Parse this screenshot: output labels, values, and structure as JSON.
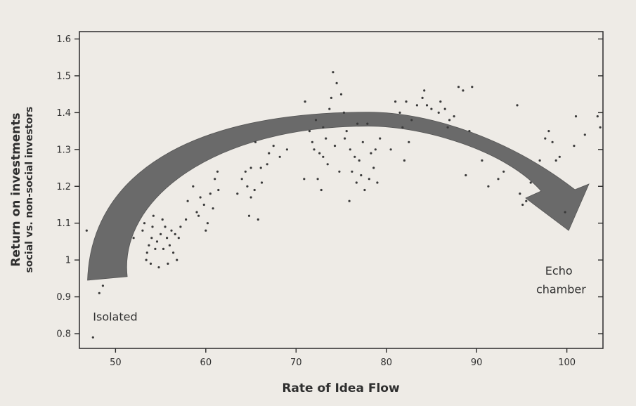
{
  "chart_data": {
    "type": "scatter",
    "title": "",
    "xlabel": "Rate of Idea Flow",
    "ylabel": "Return on investments",
    "ylabel_sub": "social vs. non-social investors",
    "xlim": [
      46,
      104
    ],
    "ylim": [
      0.76,
      1.62
    ],
    "x_ticks": [
      50,
      60,
      70,
      80,
      90,
      100
    ],
    "y_ticks": [
      0.8,
      0.9,
      1,
      1.1,
      1.2,
      1.3,
      1.4,
      1.5,
      1.6
    ],
    "x_tick_labels": [
      "50",
      "60",
      "70",
      "80",
      "90",
      "100"
    ],
    "y_tick_labels": [
      "0.8",
      "0.9",
      "1",
      "1.1",
      "1.2",
      "1.3",
      "1.4",
      "1.5",
      "1.6"
    ],
    "grid": false,
    "annotations": [
      {
        "text": "Isolated",
        "x": 47.5,
        "y": 0.835
      },
      {
        "text": "Echo",
        "x": 97.6,
        "y": 0.96
      },
      {
        "text": "chamber",
        "x": 96.6,
        "y": 0.91
      }
    ],
    "trend_arrow": {
      "tail": [
        [
          46.9,
          0.945
        ],
        [
          51.3,
          0.955
        ]
      ],
      "apex": [
        78,
        1.39
      ],
      "head": [
        100.2,
        1.08
      ],
      "color": "#6a6a6a"
    },
    "series": [
      {
        "marker_color": "#3a3a3a",
        "points": [
          [
            46.8,
            1.08
          ],
          [
            48.2,
            0.91
          ],
          [
            48.6,
            0.93
          ],
          [
            47.5,
            0.79
          ],
          [
            52.0,
            1.06
          ],
          [
            53.5,
            1.02
          ],
          [
            54.0,
            1.06
          ],
          [
            55.3,
            1.03
          ],
          [
            53.2,
            1.1
          ],
          [
            56.2,
            1.08
          ],
          [
            53.9,
            0.99
          ],
          [
            55.0,
            1.07
          ],
          [
            56.4,
            1.02
          ],
          [
            54.2,
            1.12
          ],
          [
            55.8,
            0.99
          ],
          [
            57.0,
            1.06
          ],
          [
            53.7,
            1.04
          ],
          [
            55.5,
            1.09
          ],
          [
            54.6,
            1.05
          ],
          [
            56.8,
            1.0
          ],
          [
            55.2,
            1.11
          ],
          [
            54.8,
            0.98
          ],
          [
            53.0,
            1.08
          ],
          [
            56.0,
            1.04
          ],
          [
            57.2,
            1.09
          ],
          [
            54.4,
            1.03
          ],
          [
            55.7,
            1.06
          ],
          [
            53.4,
            1.0
          ],
          [
            56.6,
            1.07
          ],
          [
            54.1,
            1.09
          ],
          [
            58.0,
            1.16
          ],
          [
            59.0,
            1.13
          ],
          [
            59.8,
            1.15
          ],
          [
            60.5,
            1.18
          ],
          [
            61.0,
            1.22
          ],
          [
            60.2,
            1.1
          ],
          [
            60.0,
            1.08
          ],
          [
            61.4,
            1.19
          ],
          [
            59.4,
            1.17
          ],
          [
            58.6,
            1.2
          ],
          [
            61.3,
            1.24
          ],
          [
            60.8,
            1.14
          ],
          [
            57.8,
            1.11
          ],
          [
            59.2,
            1.12
          ],
          [
            63.5,
            1.18
          ],
          [
            64.0,
            1.22
          ],
          [
            64.8,
            1.12
          ],
          [
            65.4,
            1.19
          ],
          [
            65.8,
            1.11
          ],
          [
            66.2,
            1.21
          ],
          [
            65.0,
            1.25
          ],
          [
            64.4,
            1.24
          ],
          [
            65.5,
            1.32
          ],
          [
            66.1,
            1.25
          ],
          [
            65.0,
            1.17
          ],
          [
            64.6,
            1.2
          ],
          [
            67.0,
            1.29
          ],
          [
            67.5,
            1.31
          ],
          [
            68.2,
            1.28
          ],
          [
            69.0,
            1.3
          ],
          [
            66.8,
            1.26
          ],
          [
            71.0,
            1.43
          ],
          [
            71.5,
            1.35
          ],
          [
            72.0,
            1.3
          ],
          [
            72.4,
            1.22
          ],
          [
            73.0,
            1.28
          ],
          [
            73.3,
            1.33
          ],
          [
            73.7,
            1.41
          ],
          [
            74.1,
            1.51
          ],
          [
            74.5,
            1.48
          ],
          [
            75.0,
            1.45
          ],
          [
            75.3,
            1.4
          ],
          [
            75.6,
            1.35
          ],
          [
            76.0,
            1.3
          ],
          [
            76.2,
            1.24
          ],
          [
            76.7,
            1.21
          ],
          [
            77.0,
            1.27
          ],
          [
            77.4,
            1.32
          ],
          [
            77.9,
            1.37
          ],
          [
            78.3,
            1.29
          ],
          [
            78.6,
            1.25
          ],
          [
            79.0,
            1.21
          ],
          [
            79.3,
            1.33
          ],
          [
            72.2,
            1.38
          ],
          [
            73.5,
            1.26
          ],
          [
            72.8,
            1.19
          ],
          [
            74.8,
            1.24
          ],
          [
            75.9,
            1.16
          ],
          [
            77.2,
            1.23
          ],
          [
            73.0,
            1.36
          ],
          [
            71.8,
            1.32
          ],
          [
            74.3,
            1.31
          ],
          [
            76.5,
            1.28
          ],
          [
            78.1,
            1.22
          ],
          [
            70.9,
            1.22
          ],
          [
            72.6,
            1.29
          ],
          [
            73.9,
            1.44
          ],
          [
            75.4,
            1.33
          ],
          [
            76.8,
            1.37
          ],
          [
            78.8,
            1.3
          ],
          [
            77.6,
            1.19
          ],
          [
            81.0,
            1.43
          ],
          [
            81.5,
            1.4
          ],
          [
            82.2,
            1.43
          ],
          [
            82.8,
            1.38
          ],
          [
            83.4,
            1.42
          ],
          [
            84.0,
            1.44
          ],
          [
            84.5,
            1.42
          ],
          [
            85.0,
            1.41
          ],
          [
            85.8,
            1.4
          ],
          [
            86.5,
            1.41
          ],
          [
            87.0,
            1.38
          ],
          [
            87.5,
            1.39
          ],
          [
            82.0,
            1.27
          ],
          [
            82.5,
            1.32
          ],
          [
            80.5,
            1.3
          ],
          [
            84.2,
            1.46
          ],
          [
            86.0,
            1.43
          ],
          [
            88.0,
            1.47
          ],
          [
            88.5,
            1.46
          ],
          [
            89.5,
            1.47
          ],
          [
            86.8,
            1.36
          ],
          [
            81.8,
            1.36
          ],
          [
            88.8,
            1.23
          ],
          [
            89.2,
            1.35
          ],
          [
            90.6,
            1.27
          ],
          [
            91.3,
            1.2
          ],
          [
            92.4,
            1.22
          ],
          [
            93.0,
            1.24
          ],
          [
            94.5,
            1.42
          ],
          [
            94.8,
            1.18
          ],
          [
            95.1,
            1.15
          ],
          [
            96.0,
            1.21
          ],
          [
            97.6,
            1.33
          ],
          [
            98.0,
            1.35
          ],
          [
            98.4,
            1.32
          ],
          [
            98.8,
            1.27
          ],
          [
            99.2,
            1.28
          ],
          [
            100.8,
            1.31
          ],
          [
            101.0,
            1.39
          ],
          [
            103.4,
            1.39
          ],
          [
            103.7,
            1.36
          ],
          [
            99.8,
            1.13
          ],
          [
            97.0,
            1.27
          ],
          [
            95.5,
            1.16
          ],
          [
            102.0,
            1.34
          ]
        ]
      }
    ]
  }
}
